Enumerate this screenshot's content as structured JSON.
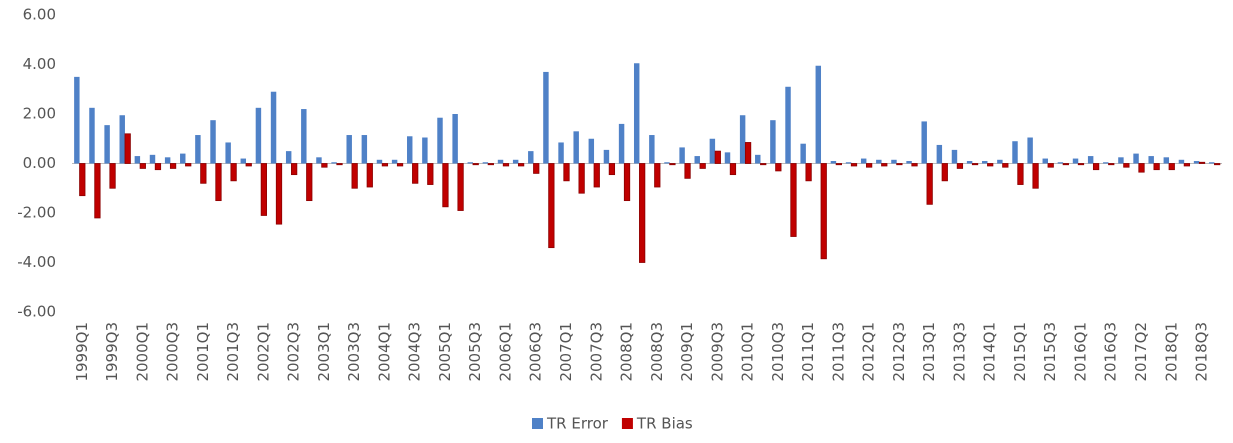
{
  "chart_data": {
    "type": "bar",
    "categories": [
      "1999Q1",
      null,
      "1999Q3",
      null,
      "2000Q1",
      null,
      "2000Q3",
      null,
      "2001Q1",
      null,
      "2001Q3",
      null,
      "2002Q1",
      null,
      "2002Q3",
      null,
      "2003Q1",
      null,
      "2003Q3",
      null,
      "2004Q1",
      null,
      "2004Q3",
      null,
      "2005Q1",
      null,
      "2005Q3",
      null,
      "2006Q1",
      null,
      "2006Q3",
      null,
      "2007Q1",
      null,
      "2007Q3",
      null,
      "2008Q1",
      null,
      "2008Q3",
      null,
      "2009Q1",
      null,
      "2009Q3",
      null,
      "2010Q1",
      null,
      "2010Q3",
      null,
      "2011Q1",
      null,
      "2011Q3",
      null,
      "2012Q1",
      null,
      "2012Q3",
      null,
      "2013Q1",
      null,
      "2013Q3",
      null,
      "2014Q1",
      null,
      "2015Q1",
      null,
      "2015Q3",
      null,
      "2016Q1",
      null,
      "2016Q3",
      null,
      "2017Q2",
      null,
      "2018Q1",
      null,
      "2018Q3",
      null
    ],
    "series": [
      {
        "name": "TR Error",
        "color": "#4f81c7",
        "values": [
          3.5,
          2.25,
          1.55,
          1.95,
          0.3,
          0.35,
          0.25,
          0.4,
          1.15,
          1.75,
          0.85,
          0.2,
          2.25,
          2.9,
          0.5,
          2.2,
          0.25,
          0.05,
          1.15,
          1.15,
          0.15,
          0.15,
          1.1,
          1.05,
          1.85,
          2.0,
          0.05,
          0.05,
          0.15,
          0.15,
          0.5,
          3.7,
          0.85,
          1.3,
          1.0,
          0.55,
          1.6,
          4.05,
          1.15,
          0.05,
          0.65,
          0.3,
          1.0,
          0.45,
          1.95,
          0.35,
          1.75,
          3.1,
          0.8,
          3.95,
          0.1,
          0.05,
          0.2,
          0.15,
          0.15,
          0.1,
          1.7,
          0.75,
          0.55,
          0.1,
          0.1,
          0.15,
          0.9,
          1.05,
          0.2,
          0.05,
          0.2,
          0.3,
          0.05,
          0.25,
          0.4,
          0.3,
          0.25,
          0.15,
          0.1,
          0.05
        ]
      },
      {
        "name": "TR Bias",
        "color": "#c00000",
        "values": [
          -1.3,
          -2.2,
          -1.0,
          1.2,
          -0.2,
          -0.25,
          -0.2,
          -0.1,
          -0.8,
          -1.5,
          -0.7,
          -0.1,
          -2.1,
          -2.45,
          -0.45,
          -1.5,
          -0.15,
          -0.05,
          -1.0,
          -0.95,
          -0.1,
          -0.1,
          -0.8,
          -0.85,
          -1.75,
          -1.9,
          -0.05,
          -0.05,
          -0.1,
          -0.1,
          -0.4,
          -3.4,
          -0.7,
          -1.2,
          -0.95,
          -0.45,
          -1.5,
          -4.0,
          -0.95,
          -0.05,
          -0.6,
          -0.2,
          0.5,
          -0.45,
          0.85,
          -0.05,
          -0.3,
          -2.95,
          -0.7,
          -3.85,
          -0.05,
          -0.1,
          -0.15,
          -0.1,
          -0.05,
          -0.1,
          -1.65,
          -0.7,
          -0.2,
          -0.05,
          -0.1,
          -0.15,
          -0.85,
          -1.0,
          -0.15,
          -0.05,
          -0.05,
          -0.25,
          -0.05,
          -0.15,
          -0.35,
          -0.25,
          -0.25,
          -0.1,
          0.05,
          -0.05
        ]
      }
    ],
    "ylim": [
      -6,
      6
    ],
    "yticks": [
      {
        "value": 6,
        "label": "6.00"
      },
      {
        "value": 4,
        "label": "4.00"
      },
      {
        "value": 2,
        "label": "2.00"
      },
      {
        "value": 0,
        "label": "0.00"
      },
      {
        "value": -2,
        "label": "-2.00"
      },
      {
        "value": -4,
        "label": "-4.00"
      },
      {
        "value": -6,
        "label": "-6.00"
      }
    ],
    "grid": false,
    "legend": "bottom"
  }
}
